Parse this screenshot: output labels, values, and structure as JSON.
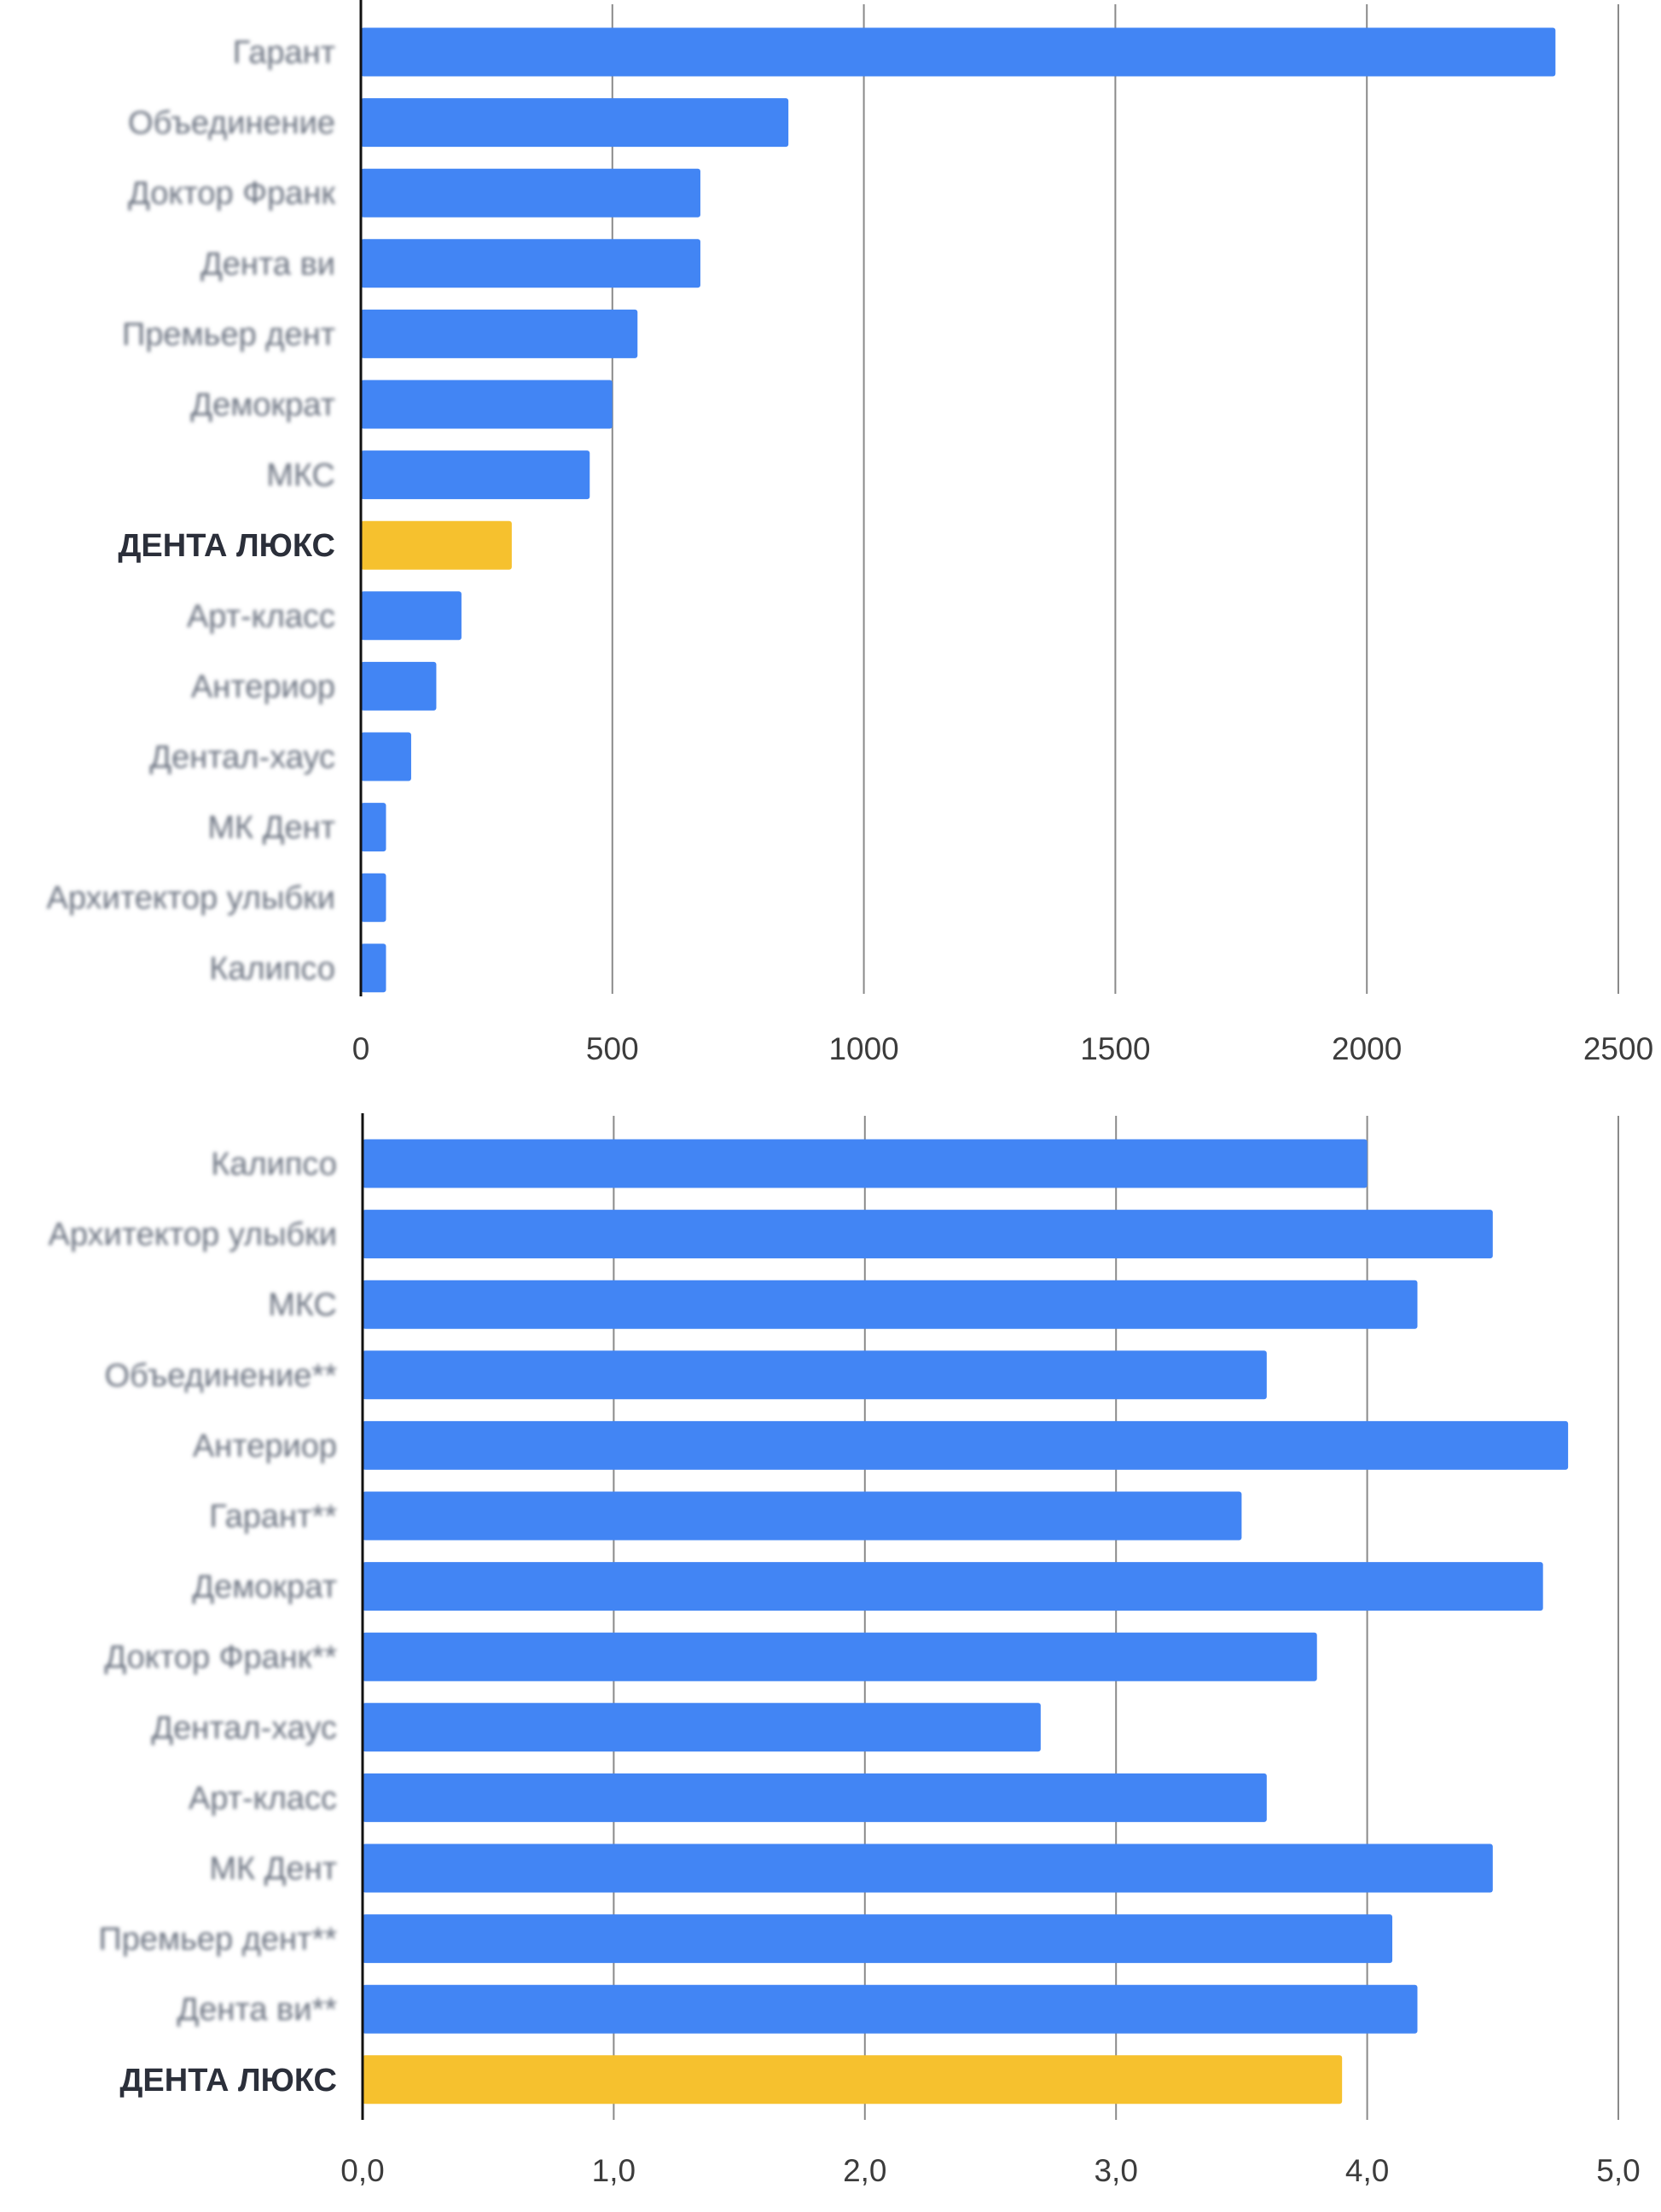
{
  "colors": {
    "bar": "#4285F4",
    "highlight": "#F6C12E",
    "grid": "#8a8a8a",
    "axis": "#111111"
  },
  "chart_data": [
    {
      "type": "bar",
      "orientation": "horizontal",
      "categories": [
        "Гарант",
        "Объединение",
        "Доктор Франк",
        "Дента ви",
        "Премьер дент",
        "Демократ",
        "МКС",
        "ДЕНТА ЛЮКС",
        "Арт-класс",
        "Антериор",
        "Дентал-хаус",
        "МК Дент",
        "Архитектор улыбки",
        "Калипсо"
      ],
      "values": [
        2375,
        850,
        675,
        675,
        550,
        500,
        455,
        300,
        200,
        150,
        100,
        50,
        50,
        50
      ],
      "highlight": "ДЕНТА ЛЮКС",
      "xlim": [
        0,
        2500
      ],
      "ticks": [
        "0",
        "500",
        "1000",
        "1500",
        "2000",
        "2500"
      ],
      "grid": true
    },
    {
      "type": "bar",
      "orientation": "horizontal",
      "categories": [
        "Калипсо",
        "Архитектор улыбки",
        "МКС",
        "Объединение**",
        "Антериор",
        "Гарант**",
        "Демократ",
        "Доктор Франк**",
        "Дентал-хаус",
        "Арт-класс",
        "МК Дент",
        "Премьер дент**",
        "Дента ви**",
        "ДЕНТА ЛЮКС"
      ],
      "values": [
        4.0,
        4.5,
        4.2,
        3.6,
        4.8,
        3.5,
        4.7,
        3.8,
        2.7,
        3.6,
        4.5,
        4.1,
        4.2,
        3.9
      ],
      "highlight": "ДЕНТА ЛЮКС",
      "xlim": [
        0,
        5
      ],
      "ticks": [
        "0,0",
        "1,0",
        "2,0",
        "3,0",
        "4,0",
        "5,0"
      ],
      "grid": true
    }
  ]
}
